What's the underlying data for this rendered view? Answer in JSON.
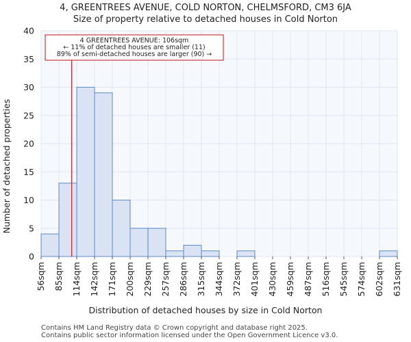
{
  "chart_data": {
    "type": "bar",
    "title_line1": "4, GREENTREES AVENUE, COLD NORTON, CHELMSFORD, CM3 6JA",
    "title_line2": "Size of property relative to detached houses in Cold Norton",
    "xlabel": "Distribution of detached houses by size in Cold Norton",
    "ylabel": "Number of detached properties",
    "ylim": [
      0,
      40
    ],
    "yticks": [
      0,
      5,
      10,
      15,
      20,
      25,
      30,
      35,
      40
    ],
    "bin_edges": [
      "56sqm",
      "85sqm",
      "114sqm",
      "142sqm",
      "171sqm",
      "200sqm",
      "229sqm",
      "257sqm",
      "286sqm",
      "315sqm",
      "344sqm",
      "372sqm",
      "401sqm",
      "430sqm",
      "459sqm",
      "487sqm",
      "516sqm",
      "545sqm",
      "574sqm",
      "602sqm",
      "631sqm"
    ],
    "values": [
      4,
      13,
      30,
      29,
      10,
      5,
      5,
      1,
      2,
      1,
      0,
      1,
      0,
      0,
      0,
      0,
      0,
      0,
      0,
      1
    ],
    "marker": {
      "value_sqm": 106,
      "bin_position": 1.72
    },
    "annotation": {
      "line1": "4 GREENTREES AVENUE: 106sqm",
      "line2": "← 11% of detached houses are smaller (11)",
      "line3": "89% of semi-detached houses are larger (90) →"
    },
    "colors": {
      "bar_fill": "#dae3f3",
      "bar_edge": "#5b8ac6",
      "marker": "#c0131a",
      "grid": "#dfe6f2"
    }
  },
  "footer": {
    "line1": "Contains HM Land Registry data © Crown copyright and database right 2025.",
    "line2": "Contains public sector information licensed under the Open Government Licence v3.0."
  }
}
